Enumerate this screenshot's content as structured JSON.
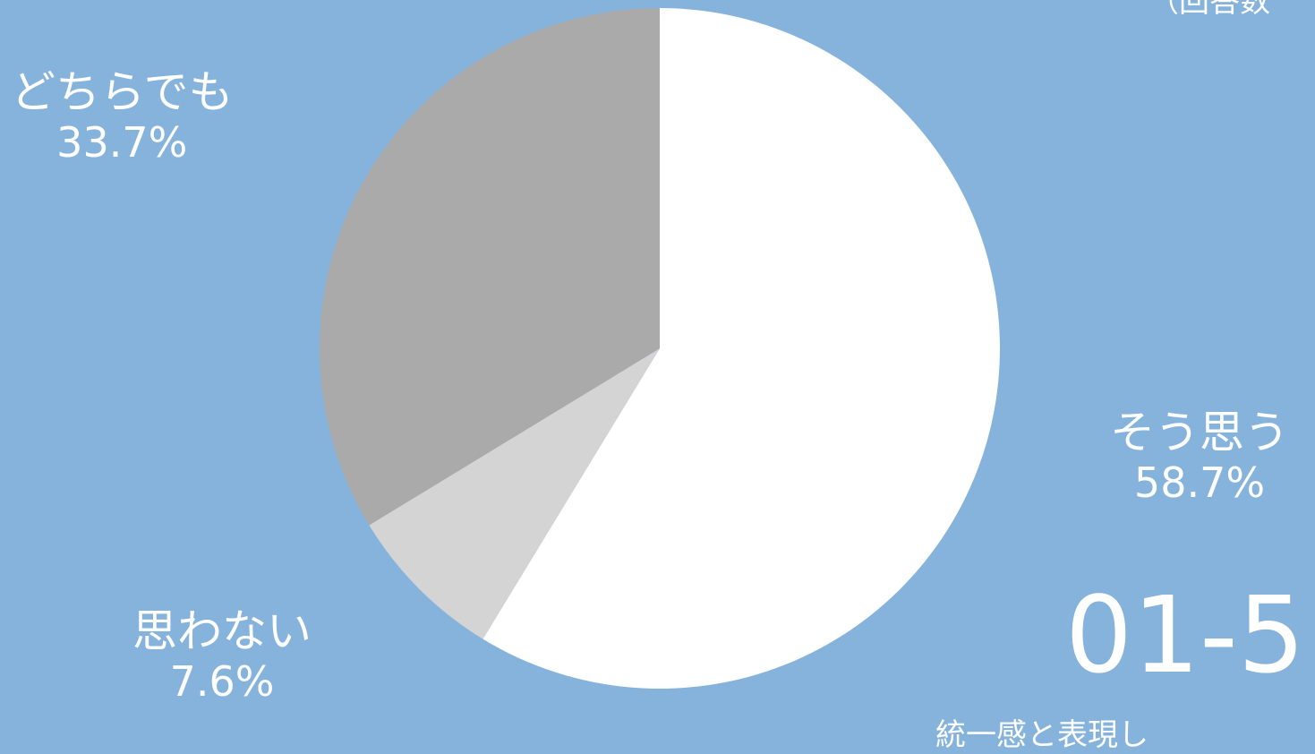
{
  "chart_data": {
    "type": "pie",
    "slices": [
      {
        "label": "そう思う",
        "pct_label": "58.7%",
        "value": 58.7,
        "color": "#FFFFFF"
      },
      {
        "label": "思わない",
        "pct_label": "7.6%",
        "value": 7.6,
        "color": "#D4D4D4"
      },
      {
        "label": "どちらでも",
        "pct_label": "33.7%",
        "value": 33.7,
        "color": "#AAAAAA"
      }
    ]
  },
  "decor": {
    "top_fragment": "（回答数",
    "code": "01-5",
    "bottom_fragment": "統一感と表現し"
  },
  "colors": {
    "background": "#85B3DB",
    "text": "#FFFFFF"
  }
}
